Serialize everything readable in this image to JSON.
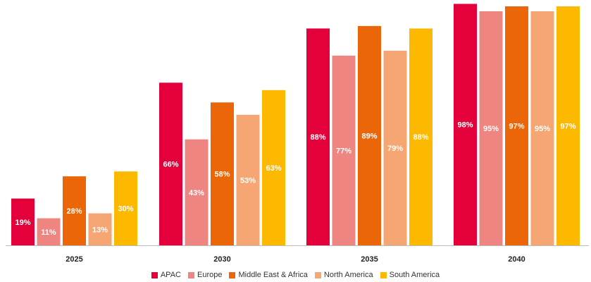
{
  "chart_data": {
    "type": "bar",
    "title": "",
    "xlabel": "",
    "ylabel": "",
    "ylim": [
      0,
      100
    ],
    "grid": false,
    "legend_position": "bottom",
    "categories": [
      "2025",
      "2030",
      "2035",
      "2040"
    ],
    "series": [
      {
        "name": "APAC",
        "color": "#E4003B",
        "values": [
          19,
          66,
          88,
          98
        ],
        "labels": [
          "19%",
          "66%",
          "88%",
          "98%"
        ]
      },
      {
        "name": "Europe",
        "color": "#EE8581",
        "values": [
          11,
          43,
          77,
          95
        ],
        "labels": [
          "11%",
          "43%",
          "77%",
          "95%"
        ]
      },
      {
        "name": "Middle East & Africa",
        "color": "#EB6608",
        "values": [
          28,
          58,
          89,
          97
        ],
        "labels": [
          "28%",
          "58%",
          "89%",
          "97%"
        ]
      },
      {
        "name": "North America",
        "color": "#F6A673",
        "values": [
          13,
          53,
          79,
          95
        ],
        "labels": [
          "13%",
          "53%",
          "79%",
          "95%"
        ]
      },
      {
        "name": "South America",
        "color": "#FCB900",
        "values": [
          30,
          63,
          88,
          97
        ],
        "labels": [
          "30%",
          "63%",
          "88%",
          "97%"
        ]
      }
    ]
  }
}
